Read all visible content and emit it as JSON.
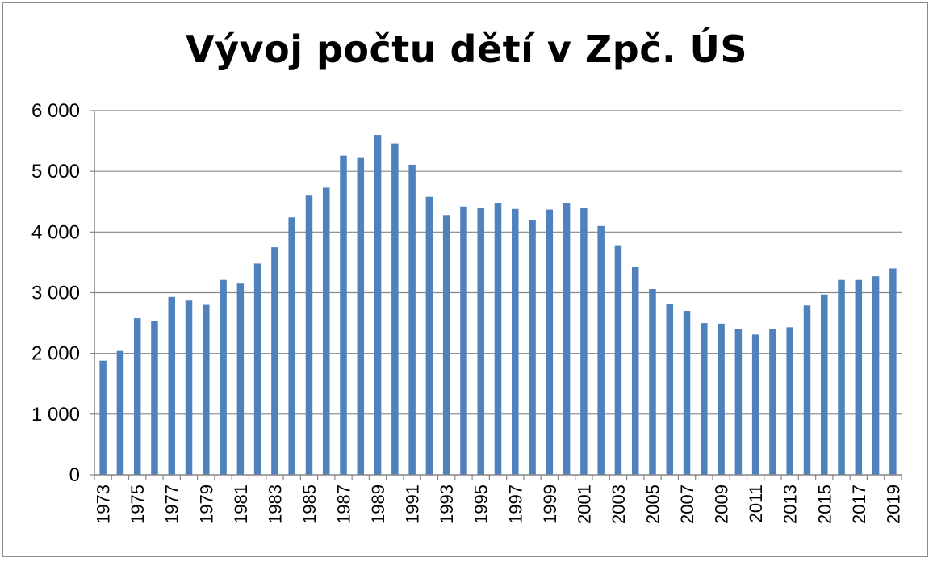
{
  "chart_data": {
    "type": "bar",
    "title": "Vývoj počtu dětí v Zpč. ÚS",
    "xlabel": "",
    "ylabel": "",
    "ylim": [
      0,
      6000
    ],
    "yticks": [
      0,
      1000,
      2000,
      3000,
      4000,
      5000,
      6000
    ],
    "ytick_labels": [
      "0",
      "1 000",
      "2 000",
      "3 000",
      "4 000",
      "5 000",
      "6 000"
    ],
    "grid": true,
    "legend": "none",
    "bar_color": "#4f81bd",
    "categories": [
      "1973",
      "1974",
      "1975",
      "1976",
      "1977",
      "1978",
      "1979",
      "1980",
      "1981",
      "1982",
      "1983",
      "1984",
      "1985",
      "1986",
      "1987",
      "1988",
      "1989",
      "1990",
      "1991",
      "1992",
      "1993",
      "1994",
      "1995",
      "1996",
      "1997",
      "1998",
      "1999",
      "2000",
      "2001",
      "2002",
      "2003",
      "2004",
      "2005",
      "2006",
      "2007",
      "2008",
      "2009",
      "2010",
      "2011",
      "2012",
      "2013",
      "2014",
      "2015",
      "2016",
      "2017",
      "2018",
      "2019"
    ],
    "shown_category_labels": [
      "1973",
      "1975",
      "1977",
      "1979",
      "1981",
      "1983",
      "1985",
      "1987",
      "1989",
      "1991",
      "1993",
      "1995",
      "1997",
      "1999",
      "2001",
      "2003",
      "2005",
      "2007",
      "2009",
      "2011",
      "2013",
      "2015",
      "2017",
      "2019"
    ],
    "values": [
      1880,
      2040,
      2580,
      2530,
      2930,
      2870,
      2800,
      3210,
      3150,
      3480,
      3750,
      4240,
      4600,
      4730,
      5260,
      5220,
      5600,
      5460,
      5110,
      4580,
      4280,
      4420,
      4400,
      4480,
      4380,
      4200,
      4370,
      4480,
      4400,
      4100,
      3770,
      3420,
      3060,
      2810,
      2700,
      2500,
      2490,
      2400,
      2310,
      2400,
      2430,
      2790,
      2970,
      3210,
      3210,
      3270,
      3400
    ]
  }
}
